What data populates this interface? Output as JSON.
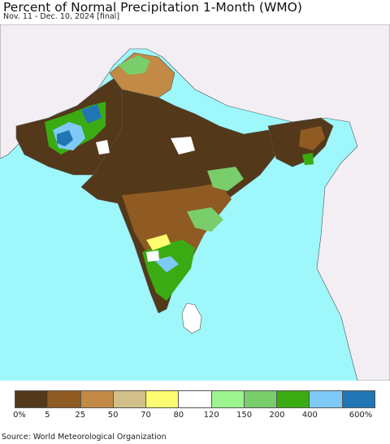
{
  "header": {
    "title": "Percent of Normal Precipitation 1-Month (WMO)",
    "subtitle": "Nov. 11 - Dec. 10, 2024 [final]"
  },
  "colors": {
    "ocean": "#9ef7fb",
    "outside": "#f2eef3",
    "border": "#555555"
  },
  "legend": {
    "swatches": [
      "#53381a",
      "#8f5b23",
      "#c28a45",
      "#d2c08a",
      "#fdfb70",
      "#ffffff",
      "#9df58f",
      "#79cd6b",
      "#3aab12",
      "#7fc9f6",
      "#2076b4"
    ],
    "ticks": [
      "0%",
      "5",
      "25",
      "50",
      "70",
      "80",
      "120",
      "150",
      "200",
      "400",
      "600%"
    ]
  },
  "footer": {
    "source": "Source: World Meteorological Organization"
  }
}
